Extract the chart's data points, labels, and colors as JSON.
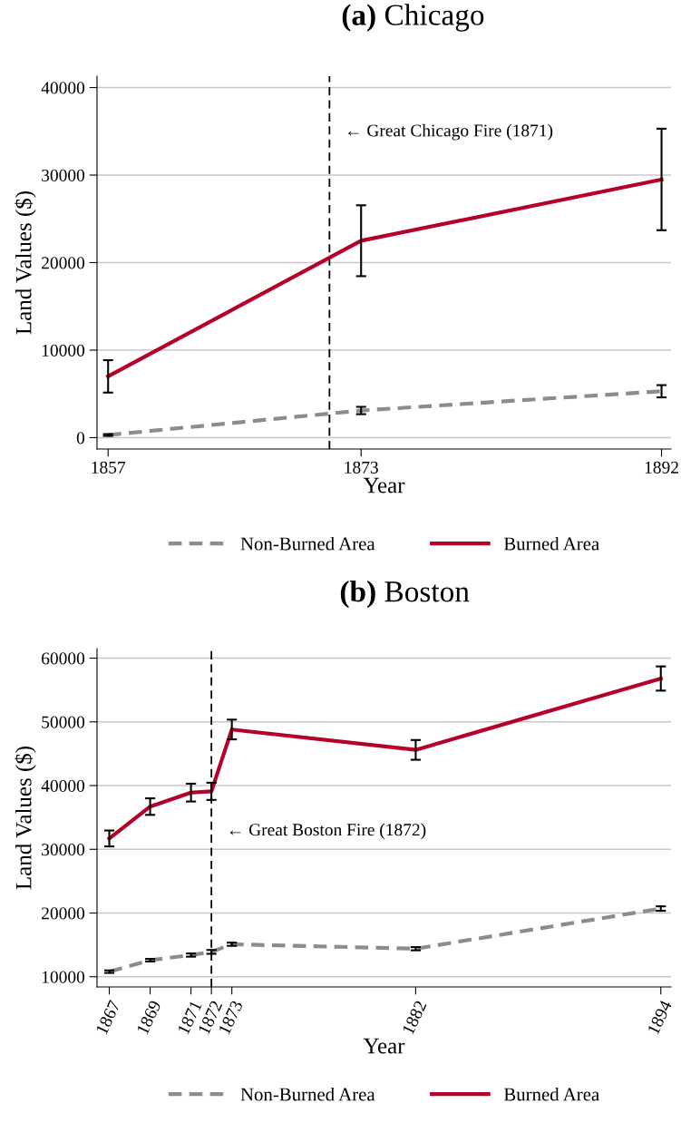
{
  "chart_data": [
    {
      "type": "line",
      "title": "(a) Chicago",
      "xlabel": "Year",
      "ylabel": "Land Values ($)",
      "xlim": [
        1856.3,
        1892.6
      ],
      "xticks": [
        1857,
        1873,
        1892
      ],
      "ylim": [
        -1300,
        41300
      ],
      "yticks": [
        0,
        10000,
        20000,
        30000,
        40000
      ],
      "grid": "y",
      "legend": "bottom",
      "marker": "none",
      "series": [
        {
          "name": "Non-Burned Area",
          "color": "#8c8c8c",
          "line_style": "dashed",
          "x": [
            1857,
            1873,
            1892
          ],
          "values": [
            300,
            3100,
            5300
          ],
          "errors": [
            100,
            420,
            700
          ]
        },
        {
          "name": "Burned Area",
          "color": "#b5002a",
          "line_style": "solid",
          "x": [
            1857,
            1873,
            1892
          ],
          "values": [
            7000,
            22500,
            29500
          ],
          "errors": [
            1850,
            4050,
            5800
          ]
        }
      ],
      "ref_lines": [
        {
          "axis": "x",
          "value": 1871,
          "color": "#000000",
          "line_style": "dashed",
          "label": "← Great Chicago Fire (1871)"
        }
      ]
    },
    {
      "type": "line",
      "title": "(b) Boston",
      "xlabel": "Year",
      "ylabel": "Land Values ($)",
      "xlim": [
        1866.4,
        1894.5
      ],
      "xticks": [
        1867,
        1869,
        1871,
        1872,
        1873,
        1882,
        1894
      ],
      "ylim": [
        8400,
        61500
      ],
      "yticks": [
        10000,
        20000,
        30000,
        40000,
        50000,
        60000
      ],
      "grid": "y",
      "legend": "bottom",
      "marker": "none",
      "series": [
        {
          "name": "Non-Burned Area",
          "color": "#8c8c8c",
          "line_style": "dashed",
          "x": [
            1867,
            1869,
            1871,
            1872,
            1873,
            1882,
            1894
          ],
          "values": [
            10800,
            12600,
            13400,
            13900,
            15100,
            14400,
            20700
          ],
          "errors": [
            200,
            200,
            250,
            300,
            250,
            250,
            350
          ]
        },
        {
          "name": "Burned Area",
          "color": "#b5002a",
          "line_style": "solid",
          "x": [
            1867,
            1869,
            1871,
            1872,
            1873,
            1882,
            1894
          ],
          "values": [
            31700,
            36700,
            38900,
            39100,
            48800,
            45600,
            56800
          ],
          "errors": [
            1250,
            1300,
            1400,
            1350,
            1550,
            1550,
            1900
          ]
        }
      ],
      "ref_lines": [
        {
          "axis": "x",
          "value": 1872,
          "color": "#000000",
          "line_style": "dashed",
          "label": "← Great Boston Fire (1872)"
        }
      ]
    }
  ]
}
